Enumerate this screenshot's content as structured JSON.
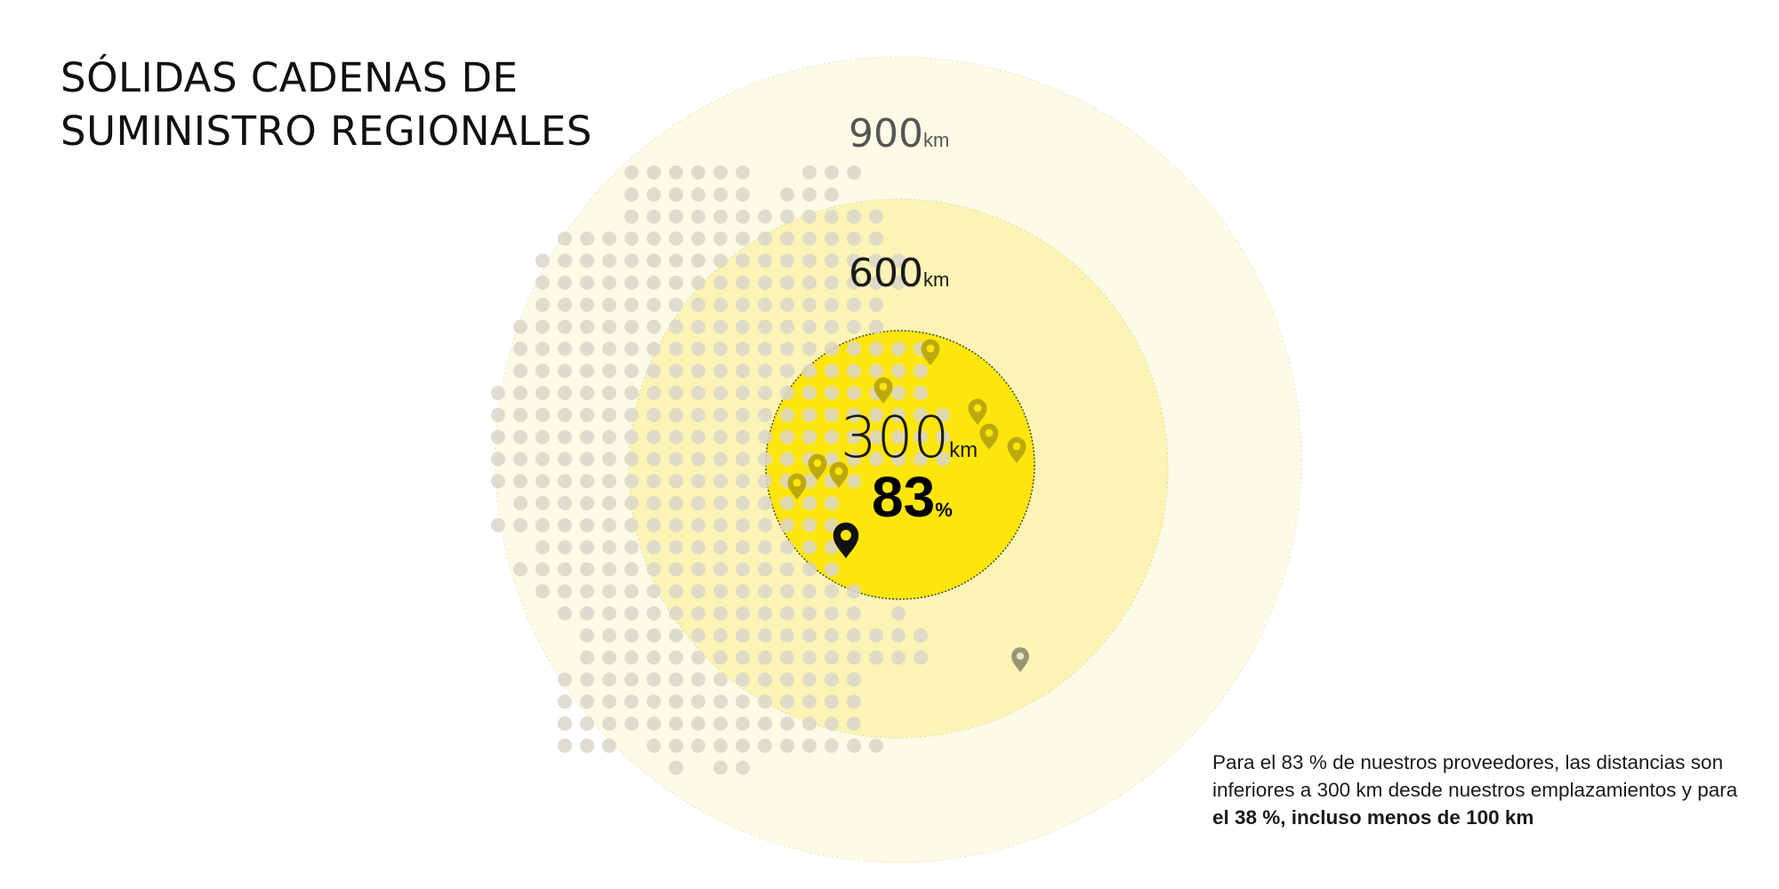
{
  "title": {
    "line1": "SÓLIDAS CADENAS DE",
    "line2": "SUMINISTRO REGIONALES"
  },
  "rings": [
    {
      "name": "ring-900",
      "value": "900",
      "unit": "km",
      "color": "#FCFBE6"
    },
    {
      "name": "ring-600",
      "value": "600",
      "unit": "km",
      "color": "#FBF4B5"
    },
    {
      "name": "ring-300",
      "value": "300",
      "unit": "km",
      "color": "#FDE50E"
    }
  ],
  "highlight": {
    "value": "83",
    "unit": "%"
  },
  "caption": {
    "text": "Para el 83 % de nuestros proveedores, las distancias son inferiores a 300 km desde nuestros emplazamientos y para ",
    "bold": "el 38 %, incluso menos de 100 km"
  },
  "colors": {
    "dot": "#D9D6C9",
    "supplier_pin": "#BCA90D",
    "outside_pin": "#9A9570",
    "main_pin": "#111111"
  },
  "icons": {
    "supplier": "location-pin-icon",
    "main_site": "location-pin-icon"
  }
}
